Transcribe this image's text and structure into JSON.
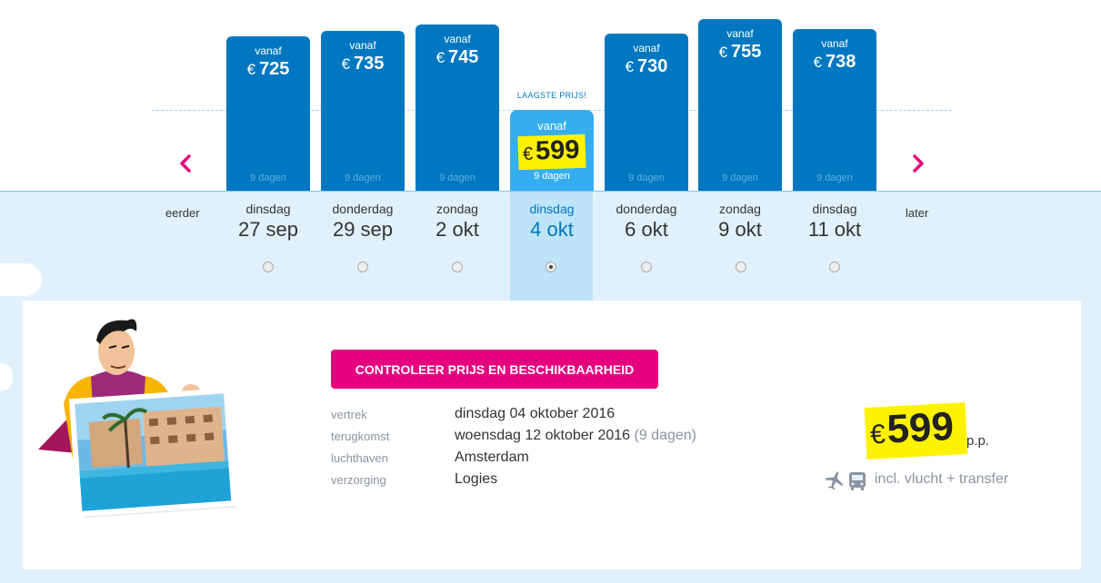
{
  "nav": {
    "prev_label": "eerder",
    "next_label": "later"
  },
  "lowest_label": "LAAGSTE PRIJS!",
  "dates": [
    {
      "vanaf": "vanaf",
      "currency": "€",
      "price": "725",
      "duration": "9 dagen",
      "weekday": "dinsdag",
      "date": "27 sep",
      "relative_height": 0.82,
      "selected": false
    },
    {
      "vanaf": "vanaf",
      "currency": "€",
      "price": "735",
      "duration": "9 dagen",
      "weekday": "donderdag",
      "date": "29 sep",
      "relative_height": 0.85,
      "selected": false
    },
    {
      "vanaf": "vanaf",
      "currency": "€",
      "price": "745",
      "duration": "9 dagen",
      "weekday": "zondag",
      "date": "2 okt",
      "relative_height": 0.88,
      "selected": false
    },
    {
      "vanaf": "vanaf",
      "currency": "€",
      "price": "599",
      "duration": "9 dagen",
      "weekday": "dinsdag",
      "date": "4 okt",
      "relative_height": 0.47,
      "selected": true
    },
    {
      "vanaf": "vanaf",
      "currency": "€",
      "price": "730",
      "duration": "9 dagen",
      "weekday": "donderdag",
      "date": "6 okt",
      "relative_height": 0.84,
      "selected": false
    },
    {
      "vanaf": "vanaf",
      "currency": "€",
      "price": "755",
      "duration": "9 dagen",
      "weekday": "zondag",
      "date": "9 okt",
      "relative_height": 0.9,
      "selected": false
    },
    {
      "vanaf": "vanaf",
      "currency": "€",
      "price": "738",
      "duration": "9 dagen",
      "weekday": "dinsdag",
      "date": "11 okt",
      "relative_height": 0.86,
      "selected": false
    }
  ],
  "cta_label": "CONTROLEER PRIJS EN BESCHIKBAARHEID",
  "details": [
    {
      "label": "vertrek",
      "value": "dinsdag 04 oktober 2016",
      "extra": ""
    },
    {
      "label": "terugkomst",
      "value": "woensdag 12 oktober 2016",
      "extra": "(9 dagen)"
    },
    {
      "label": "luchthaven",
      "value": "Amsterdam",
      "extra": ""
    },
    {
      "label": "verzorging",
      "value": "Logies",
      "extra": ""
    }
  ],
  "summary": {
    "currency": "€",
    "price": "599",
    "per_person": "p.p.",
    "includes": "incl. vlucht + transfer"
  },
  "colors": {
    "brand_blue": "#0077c0",
    "selected_blue": "#35aef0",
    "cta_pink": "#e6007e",
    "highlight_yellow": "#fff200",
    "nav_pink": "#e6007e"
  }
}
